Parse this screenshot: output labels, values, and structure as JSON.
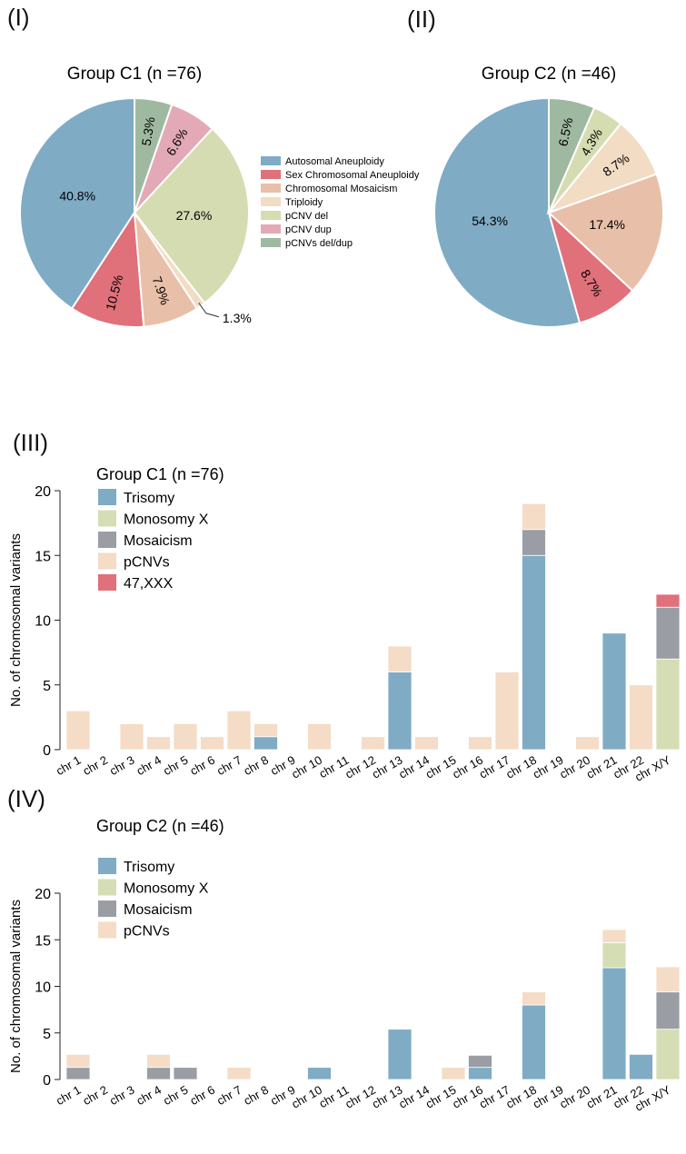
{
  "panels": {
    "p1": "(I)",
    "p2": "(II)",
    "p3": "(III)",
    "p4": "(IV)"
  },
  "colors": {
    "autosomal": "#7fabc5",
    "sex_chrom": "#e0707a",
    "mosaicism_pie": "#e8bfa8",
    "triploidy": "#f2dcc4",
    "pcnv_del": "#d6dcb2",
    "pcnv_dup": "#e3a9b6",
    "pcnvs_deldup": "#9fb9a0",
    "trisomy": "#7fabc5",
    "monosomy_x": "#d5ddb4",
    "mosaicism_bar": "#9a9ea4",
    "pcnvs_bar": "#f4dcc6",
    "xxx": "#e0707a"
  },
  "chart_data": [
    {
      "type": "pie",
      "title": "Group C1 (n =76)",
      "legend_position": "right",
      "slices": [
        {
          "label": "Autosomal Aneuploidy",
          "value": 40.8,
          "text": "40.8%",
          "color": "#7fabc5"
        },
        {
          "label": "Sex Chromosomal Aneuploidy",
          "value": 10.5,
          "text": "10.5%",
          "color": "#e0707a"
        },
        {
          "label": "Chromosomal Mosaicism",
          "value": 7.9,
          "text": "7.9%",
          "color": "#e8bfa8"
        },
        {
          "label": "Triploidy",
          "value": 1.3,
          "text": "1.3%",
          "color": "#f2dcc4"
        },
        {
          "label": "pCNV del",
          "value": 27.6,
          "text": "27.6%",
          "color": "#d6dcb2"
        },
        {
          "label": "pCNV dup",
          "value": 6.6,
          "text": "6.6%",
          "color": "#e3a9b6"
        },
        {
          "label": "pCNVs del/dup",
          "value": 5.3,
          "text": "5.3%",
          "color": "#9fb9a0"
        }
      ]
    },
    {
      "type": "pie",
      "title": "Group C2 (n =46)",
      "slices": [
        {
          "label": "Autosomal Aneuploidy",
          "value": 54.3,
          "text": "54.3%",
          "color": "#7fabc5"
        },
        {
          "label": "Sex Chromosomal Aneuploidy",
          "value": 8.7,
          "text": "8.7%",
          "color": "#e0707a"
        },
        {
          "label": "Chromosomal Mosaicism",
          "value": 17.4,
          "text": "17.4%",
          "color": "#e8bfa8"
        },
        {
          "label": "Triploidy",
          "value": 8.7,
          "text": "8.7%",
          "color": "#f2dcc4"
        },
        {
          "label": "pCNV del",
          "value": 4.3,
          "text": "4.3%",
          "color": "#d6dcb2"
        },
        {
          "label": "pCNVs del/dup",
          "value": 6.5,
          "text": "6.5%",
          "color": "#9fb9a0"
        }
      ]
    },
    {
      "type": "bar",
      "stacked": true,
      "title": "Group C1 (n =76)",
      "ylabel": "No. of chromosomal variants",
      "ylim": [
        0,
        20
      ],
      "yticks": [
        0,
        5,
        10,
        15,
        20
      ],
      "legend_position": "top-left",
      "categories": [
        "chr 1",
        "chr 2",
        "chr 3",
        "chr 4",
        "chr 5",
        "chr 6",
        "chr 7",
        "chr 8",
        "chr 9",
        "chr 10",
        "chr 11",
        "chr 12",
        "chr 13",
        "chr 14",
        "chr 15",
        "chr 16",
        "chr 17",
        "chr 18",
        "chr 19",
        "chr 20",
        "chr 21",
        "chr 22",
        "chr X/Y"
      ],
      "series": [
        {
          "name": "Trisomy",
          "color": "#7fabc5",
          "values": [
            0,
            0,
            0,
            0,
            0,
            0,
            0,
            1,
            0,
            0,
            0,
            0,
            6,
            0,
            0,
            0,
            0,
            15,
            0,
            0,
            9,
            0,
            0
          ]
        },
        {
          "name": "Monosomy X",
          "color": "#d5ddb4",
          "values": [
            0,
            0,
            0,
            0,
            0,
            0,
            0,
            0,
            0,
            0,
            0,
            0,
            0,
            0,
            0,
            0,
            0,
            0,
            0,
            0,
            0,
            0,
            7
          ]
        },
        {
          "name": "Mosaicism",
          "color": "#9a9ea4",
          "values": [
            0,
            0,
            0,
            0,
            0,
            0,
            0,
            0,
            0,
            0,
            0,
            0,
            0,
            0,
            0,
            0,
            0,
            2,
            0,
            0,
            0,
            0,
            4
          ]
        },
        {
          "name": "pCNVs",
          "color": "#f4dcc6",
          "values": [
            3,
            0,
            2,
            1,
            2,
            1,
            3,
            1,
            0,
            2,
            0,
            1,
            2,
            1,
            0,
            1,
            6,
            2,
            0,
            1,
            0,
            5,
            0
          ]
        },
        {
          "name": "47,XXX",
          "color": "#e0707a",
          "values": [
            0,
            0,
            0,
            0,
            0,
            0,
            0,
            0,
            0,
            0,
            0,
            0,
            0,
            0,
            0,
            0,
            0,
            0,
            0,
            0,
            0,
            0,
            1
          ]
        }
      ]
    },
    {
      "type": "bar",
      "stacked": true,
      "title": "Group C2 (n =46)",
      "ylabel": "No. of chromosomal variants",
      "ylim": [
        0,
        20
      ],
      "yticks": [
        0,
        5,
        10,
        15,
        20
      ],
      "legend_position": "top-left",
      "categories": [
        "chr 1",
        "chr 2",
        "chr 3",
        "chr 4",
        "chr 5",
        "chr 6",
        "chr 7",
        "chr 8",
        "chr 9",
        "chr 10",
        "chr 11",
        "chr 12",
        "chr 13",
        "chr 14",
        "chr 15",
        "chr 16",
        "chr 17",
        "chr 18",
        "chr 19",
        "chr 20",
        "chr 21",
        "chr 22",
        "chr X/Y"
      ],
      "series": [
        {
          "name": "Trisomy",
          "color": "#7fabc5",
          "values": [
            0,
            0,
            0,
            0,
            0,
            0,
            0,
            0,
            0,
            1.3,
            0,
            0,
            5.4,
            0,
            0,
            1.3,
            0,
            8,
            0,
            0,
            12,
            2.7,
            0
          ]
        },
        {
          "name": "Monosomy X",
          "color": "#d5ddb4",
          "values": [
            0,
            0,
            0,
            0,
            0,
            0,
            0,
            0,
            0,
            0,
            0,
            0,
            0,
            0,
            0,
            0,
            0,
            0,
            0,
            0,
            2.7,
            0,
            5.4
          ]
        },
        {
          "name": "Mosaicism",
          "color": "#9a9ea4",
          "values": [
            1.3,
            0,
            0,
            1.3,
            1.3,
            0,
            0,
            0,
            0,
            0,
            0,
            0,
            0,
            0,
            0,
            1.3,
            0,
            0,
            0,
            0,
            0,
            0,
            4
          ]
        },
        {
          "name": "pCNVs",
          "color": "#f4dcc6",
          "values": [
            1.4,
            0,
            0,
            1.4,
            0,
            0,
            1.3,
            0,
            0,
            0,
            0,
            0,
            0,
            0,
            1.3,
            0,
            0,
            1.4,
            0,
            0,
            1.4,
            0,
            2.7
          ]
        }
      ]
    }
  ]
}
